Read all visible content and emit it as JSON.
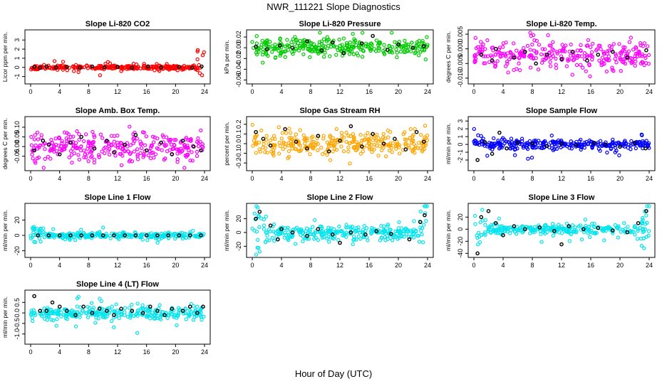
{
  "page": {
    "title": "NWR_111221  Slope Diagnostics",
    "xlabel": "Hour of Day (UTC)"
  },
  "chart_data": [
    {
      "type": "scatter",
      "title": "Slope Li-820 CO2",
      "ylabel": "Licor ppm per min.",
      "color": "#ff0000",
      "xlim": [
        0,
        24
      ],
      "xticks": [
        0,
        4,
        8,
        12,
        16,
        20,
        24
      ],
      "ylim": [
        -1.5,
        3.8
      ],
      "yticks": [
        -1,
        0,
        1,
        2,
        3
      ],
      "ytick_labels": [
        "-1",
        "0",
        "1",
        "2",
        "3"
      ],
      "center": 0,
      "spread": 0.1,
      "outlier_spread": 0.35,
      "late_spike": true,
      "black_points": [
        {
          "x": 0.5,
          "y": 0.05
        },
        {
          "x": 1.3,
          "y": -0.05
        },
        {
          "x": 2.2,
          "y": 0.1
        },
        {
          "x": 3.5,
          "y": 0.0
        },
        {
          "x": 5.0,
          "y": 0.05
        },
        {
          "x": 6.8,
          "y": -0.05
        },
        {
          "x": 8.5,
          "y": 0.1
        },
        {
          "x": 10.2,
          "y": 0.0
        },
        {
          "x": 12.0,
          "y": 0.05
        },
        {
          "x": 14.0,
          "y": -0.05
        },
        {
          "x": 16.2,
          "y": 0.1
        },
        {
          "x": 18.0,
          "y": 0.0
        },
        {
          "x": 20.5,
          "y": 0.05
        },
        {
          "x": 22.3,
          "y": -0.05
        },
        {
          "x": 23.6,
          "y": 0.1
        }
      ]
    },
    {
      "type": "scatter",
      "title": "Slope Li-820 Pressure",
      "ylabel": "kPa per min.",
      "color": "#00cc00",
      "xlim": [
        0,
        24
      ],
      "xticks": [
        0,
        4,
        8,
        12,
        16,
        20,
        24
      ],
      "ylim": [
        -0.062,
        0.028
      ],
      "yticks": [
        -0.06,
        -0.04,
        -0.02,
        0.0,
        0.02
      ],
      "ytick_labels": [
        "-0.06",
        "-0.04",
        "-0.02",
        "0.00",
        "0.02"
      ],
      "center": 0,
      "spread": 0.008,
      "outlier_spread": 0.02,
      "black_points": [
        {
          "x": 0.5,
          "y": 0.002
        },
        {
          "x": 2.0,
          "y": -0.003
        },
        {
          "x": 3.8,
          "y": 0.004
        },
        {
          "x": 5.5,
          "y": 0.0
        },
        {
          "x": 7.5,
          "y": 0.012
        },
        {
          "x": 9.5,
          "y": -0.005
        },
        {
          "x": 11.0,
          "y": 0.01
        },
        {
          "x": 12.5,
          "y": -0.01
        },
        {
          "x": 15.0,
          "y": 0.008
        },
        {
          "x": 16.5,
          "y": 0.022
        },
        {
          "x": 18.5,
          "y": -0.004
        },
        {
          "x": 20.0,
          "y": 0.006
        },
        {
          "x": 22.0,
          "y": 0.0
        },
        {
          "x": 23.5,
          "y": 0.003
        }
      ]
    },
    {
      "type": "scatter",
      "title": "Slope Li-820 Temp.",
      "ylabel": "degrees C per min.",
      "color": "#ff00ff",
      "xlim": [
        0,
        24
      ],
      "xticks": [
        0,
        4,
        8,
        12,
        16,
        20,
        24
      ],
      "ylim": [
        -0.011,
        0.0055
      ],
      "yticks": [
        -0.01,
        -0.005,
        0.0,
        0.005
      ],
      "ytick_labels": [
        "-0.010",
        "-0.005",
        "0.000",
        "0.005"
      ],
      "center": -0.002,
      "spread": 0.0022,
      "outlier_spread": 0.004,
      "black_points": [
        {
          "x": 1.0,
          "y": -0.002
        },
        {
          "x": 2.5,
          "y": -0.004
        },
        {
          "x": 3.0,
          "y": 0.0
        },
        {
          "x": 5.5,
          "y": -0.003
        },
        {
          "x": 7.0,
          "y": -0.001
        },
        {
          "x": 8.5,
          "y": -0.005
        },
        {
          "x": 10.0,
          "y": -0.002
        },
        {
          "x": 12.0,
          "y": -0.0035
        },
        {
          "x": 13.5,
          "y": -0.001
        },
        {
          "x": 15.5,
          "y": -0.004
        },
        {
          "x": 17.0,
          "y": -0.002
        },
        {
          "x": 19.0,
          "y": -0.001
        },
        {
          "x": 21.0,
          "y": -0.003
        },
        {
          "x": 23.6,
          "y": -0.0005
        }
      ]
    },
    {
      "type": "scatter",
      "title": "Slope Amb. Box Temp.",
      "ylabel": "degrees C per min.",
      "color": "#ff00ff",
      "xlim": [
        0,
        24
      ],
      "xticks": [
        0,
        4,
        8,
        12,
        16,
        20,
        24
      ],
      "ylim": [
        -0.11,
        0.14
      ],
      "yticks": [
        -0.05,
        0.0,
        0.05,
        0.1
      ],
      "ytick_labels": [
        "-0.05",
        "0.00",
        "0.05",
        "0.10"
      ],
      "center": 0,
      "spread": 0.035,
      "outlier_spread": 0.06,
      "black_points": [
        {
          "x": 0.5,
          "y": -0.02
        },
        {
          "x": 1.7,
          "y": 0.03
        },
        {
          "x": 2.5,
          "y": 0.01
        },
        {
          "x": 4.0,
          "y": -0.04
        },
        {
          "x": 5.5,
          "y": 0.02
        },
        {
          "x": 7.0,
          "y": 0.05
        },
        {
          "x": 8.8,
          "y": -0.01
        },
        {
          "x": 10.5,
          "y": 0.03
        },
        {
          "x": 11.5,
          "y": -0.03
        },
        {
          "x": 13.0,
          "y": 0.01
        },
        {
          "x": 14.5,
          "y": 0.06
        },
        {
          "x": 16.0,
          "y": -0.02
        },
        {
          "x": 18.0,
          "y": 0.02
        },
        {
          "x": 19.5,
          "y": -0.04
        },
        {
          "x": 21.0,
          "y": 0.03
        },
        {
          "x": 22.5,
          "y": 0.0
        },
        {
          "x": 23.5,
          "y": -0.02
        }
      ]
    },
    {
      "type": "scatter",
      "title": "Slope Gas Stream RH",
      "ylabel": "percent per min.",
      "color": "#ffa500",
      "xlim": [
        0,
        24
      ],
      "xticks": [
        0,
        4,
        8,
        12,
        16,
        20,
        24
      ],
      "ylim": [
        -0.25,
        0.25
      ],
      "yticks": [
        -0.2,
        -0.1,
        0.0,
        0.1,
        0.2
      ],
      "ytick_labels": [
        "-0.2",
        "-0.1",
        "0.0",
        "0.1",
        "0.2"
      ],
      "center": 0,
      "spread": 0.06,
      "outlier_spread": 0.1,
      "black_points": [
        {
          "x": 0.5,
          "y": 0.12
        },
        {
          "x": 1.5,
          "y": 0.05
        },
        {
          "x": 2.5,
          "y": -0.02
        },
        {
          "x": 4.5,
          "y": 0.15
        },
        {
          "x": 6.0,
          "y": 0.02
        },
        {
          "x": 7.5,
          "y": -0.05
        },
        {
          "x": 9.0,
          "y": 0.08
        },
        {
          "x": 10.5,
          "y": -0.08
        },
        {
          "x": 12.0,
          "y": 0.03
        },
        {
          "x": 13.5,
          "y": 0.18
        },
        {
          "x": 15.0,
          "y": -0.03
        },
        {
          "x": 16.5,
          "y": 0.1
        },
        {
          "x": 18.0,
          "y": 0.0
        },
        {
          "x": 19.5,
          "y": 0.05
        },
        {
          "x": 21.0,
          "y": -0.06
        },
        {
          "x": 22.5,
          "y": 0.12
        },
        {
          "x": 23.5,
          "y": 0.02
        }
      ]
    },
    {
      "type": "scatter",
      "title": "Slope Sample Flow",
      "ylabel": "ml/min per min.",
      "color": "#0000ff",
      "xlim": [
        0,
        24
      ],
      "xticks": [
        0,
        4,
        8,
        12,
        16,
        20,
        24
      ],
      "ylim": [
        -3.0,
        3.2
      ],
      "yticks": [
        -2,
        -1,
        0,
        1,
        2,
        3
      ],
      "ytick_labels": [
        "-2",
        "-1",
        "0",
        "1",
        "2",
        "3"
      ],
      "center": 0,
      "spread": 0.3,
      "outlier_spread": 1.0,
      "black_points": [
        {
          "x": 0.5,
          "y": -2.0
        },
        {
          "x": 1.5,
          "y": 0.3
        },
        {
          "x": 2.5,
          "y": -1.2
        },
        {
          "x": 3.5,
          "y": 1.5
        },
        {
          "x": 4.5,
          "y": -0.5
        },
        {
          "x": 6.0,
          "y": 0.2
        },
        {
          "x": 8.0,
          "y": 0.1
        },
        {
          "x": 10.0,
          "y": -0.2
        },
        {
          "x": 12.0,
          "y": 0.1
        },
        {
          "x": 14.0,
          "y": -0.1
        },
        {
          "x": 16.5,
          "y": 0.2
        },
        {
          "x": 18.0,
          "y": 0.0
        },
        {
          "x": 20.0,
          "y": -0.3
        },
        {
          "x": 22.0,
          "y": 0.2
        },
        {
          "x": 23.5,
          "y": -0.5
        }
      ]
    },
    {
      "type": "scatter",
      "title": "Slope Line 1 Flow",
      "ylabel": "ml/min per min.",
      "color": "#00e5ee",
      "xlim": [
        0,
        24
      ],
      "xticks": [
        0,
        4,
        8,
        12,
        16,
        20,
        24
      ],
      "ylim": [
        -25,
        38
      ],
      "yticks": [
        -20,
        0,
        20
      ],
      "ytick_labels": [
        "-20",
        "0",
        "20"
      ],
      "center": 0,
      "spread": 2,
      "outlier_spread": 4,
      "early_noise": true,
      "black_points": [
        {
          "x": 1.0,
          "y": 0
        },
        {
          "x": 2.5,
          "y": 0
        },
        {
          "x": 4.0,
          "y": 0
        },
        {
          "x": 5.5,
          "y": 0
        },
        {
          "x": 7.0,
          "y": 0
        },
        {
          "x": 8.5,
          "y": 0
        },
        {
          "x": 10.0,
          "y": 0
        },
        {
          "x": 11.5,
          "y": 0
        },
        {
          "x": 13.0,
          "y": 0
        },
        {
          "x": 14.5,
          "y": 0
        },
        {
          "x": 16.0,
          "y": 0
        },
        {
          "x": 17.5,
          "y": 0
        },
        {
          "x": 19.0,
          "y": 0
        },
        {
          "x": 20.5,
          "y": 0
        },
        {
          "x": 22.0,
          "y": 0
        },
        {
          "x": 23.5,
          "y": 0
        }
      ]
    },
    {
      "type": "scatter",
      "title": "Slope Line 2 Flow",
      "ylabel": "ml/min per min.",
      "color": "#00e5ee",
      "xlim": [
        0,
        24
      ],
      "xticks": [
        0,
        4,
        8,
        12,
        16,
        20,
        24
      ],
      "ylim": [
        -32,
        38
      ],
      "yticks": [
        -20,
        0,
        20
      ],
      "ytick_labels": [
        "-20",
        "0",
        "20"
      ],
      "center": 0,
      "spread": 5,
      "outlier_spread": 10,
      "early_noise": true,
      "late_spike": true,
      "black_points": [
        {
          "x": 0.5,
          "y": 20
        },
        {
          "x": 1.0,
          "y": 30
        },
        {
          "x": 2.5,
          "y": 10
        },
        {
          "x": 3.5,
          "y": -10
        },
        {
          "x": 4.0,
          "y": 5
        },
        {
          "x": 5.5,
          "y": 0
        },
        {
          "x": 7.5,
          "y": -5
        },
        {
          "x": 9.0,
          "y": 5
        },
        {
          "x": 11.0,
          "y": -3
        },
        {
          "x": 12.0,
          "y": -15
        },
        {
          "x": 13.5,
          "y": 0
        },
        {
          "x": 15.5,
          "y": -3
        },
        {
          "x": 17.0,
          "y": 2
        },
        {
          "x": 19.0,
          "y": -2
        },
        {
          "x": 21.5,
          "y": -10
        },
        {
          "x": 23.0,
          "y": 15
        },
        {
          "x": 23.6,
          "y": 25
        }
      ]
    },
    {
      "type": "scatter",
      "title": "Slope Line 3 Flow",
      "ylabel": "ml/min per min.",
      "color": "#00e5ee",
      "xlim": [
        0,
        24
      ],
      "xticks": [
        0,
        4,
        8,
        12,
        16,
        20,
        24
      ],
      "ylim": [
        -42,
        38
      ],
      "yticks": [
        -40,
        -20,
        0,
        20
      ],
      "ytick_labels": [
        "-40",
        "-20",
        "0",
        "20"
      ],
      "center": 0,
      "spread": 4,
      "outlier_spread": 12,
      "early_noise": true,
      "late_spike": true,
      "black_points": [
        {
          "x": 0.5,
          "y": -40
        },
        {
          "x": 1.0,
          "y": 20
        },
        {
          "x": 2.0,
          "y": 30
        },
        {
          "x": 3.0,
          "y": 10
        },
        {
          "x": 4.0,
          "y": -10
        },
        {
          "x": 5.5,
          "y": 5
        },
        {
          "x": 7.0,
          "y": 0
        },
        {
          "x": 9.0,
          "y": 3
        },
        {
          "x": 11.0,
          "y": -3
        },
        {
          "x": 12.0,
          "y": -25
        },
        {
          "x": 13.0,
          "y": 5
        },
        {
          "x": 15.0,
          "y": 0
        },
        {
          "x": 17.0,
          "y": 2
        },
        {
          "x": 19.0,
          "y": -2
        },
        {
          "x": 21.0,
          "y": -5
        },
        {
          "x": 22.5,
          "y": 10
        },
        {
          "x": 23.6,
          "y": 30
        }
      ]
    },
    {
      "type": "scatter",
      "title": "Slope Line 4 (LT) Flow",
      "ylabel": "ml/min per min.",
      "color": "#00e5ee",
      "xlim": [
        0,
        24
      ],
      "xticks": [
        0,
        4,
        8,
        12,
        16,
        20,
        24
      ],
      "ylim": [
        -1.35,
        0.95
      ],
      "yticks": [
        -1.0,
        -0.5,
        0.0,
        0.5
      ],
      "ytick_labels": [
        "-1.0",
        "-0.5",
        "0.0",
        "0.5"
      ],
      "center": 0,
      "spread": 0.15,
      "outlier_spread": 0.4,
      "black_points": [
        {
          "x": 0.5,
          "y": 0.8
        },
        {
          "x": 1.3,
          "y": 0.1
        },
        {
          "x": 2.2,
          "y": 0.1
        },
        {
          "x": 3.0,
          "y": 0.5
        },
        {
          "x": 4.0,
          "y": 0.3
        },
        {
          "x": 5.0,
          "y": 0.1
        },
        {
          "x": 6.2,
          "y": -0.1
        },
        {
          "x": 7.3,
          "y": 0.3
        },
        {
          "x": 8.5,
          "y": 0.0
        },
        {
          "x": 9.5,
          "y": 0.2
        },
        {
          "x": 10.5,
          "y": 0.1
        },
        {
          "x": 11.5,
          "y": -0.1
        },
        {
          "x": 12.5,
          "y": 0.2
        },
        {
          "x": 14.0,
          "y": 0.1
        },
        {
          "x": 15.5,
          "y": 0.0
        },
        {
          "x": 16.5,
          "y": 0.3
        },
        {
          "x": 17.5,
          "y": 0.1
        },
        {
          "x": 18.5,
          "y": -0.1
        },
        {
          "x": 19.5,
          "y": 0.2
        },
        {
          "x": 21.0,
          "y": 0.1
        },
        {
          "x": 22.0,
          "y": 0.3
        },
        {
          "x": 23.0,
          "y": 0.0
        },
        {
          "x": 23.8,
          "y": 0.3
        }
      ]
    }
  ]
}
